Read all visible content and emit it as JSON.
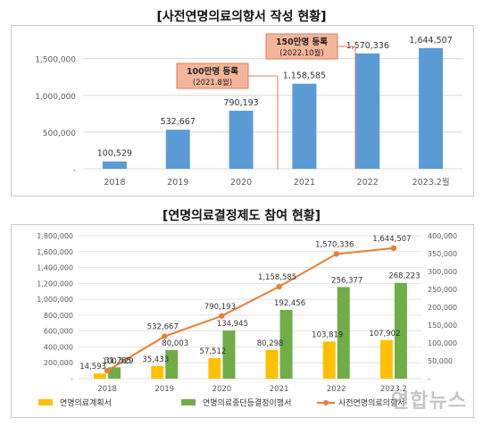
{
  "chart_data": [
    {
      "type": "bar",
      "title": "[사전연명의료의향서 작성 현황]",
      "categories": [
        "2018",
        "2019",
        "2020",
        "2021",
        "2022",
        "2023.2월"
      ],
      "values": [
        100529,
        532667,
        790193,
        1158585,
        1570336,
        1644507
      ],
      "value_labels": [
        "100,529",
        "532,667",
        "790,193",
        "1,158,585",
        "1,570,336",
        "1,644,507"
      ],
      "y_ticks": [
        "-",
        "500,000",
        "1,000,000",
        "1,500,000"
      ],
      "ylim": [
        0,
        1800000
      ],
      "grid": true,
      "bar_color": "#5b9bd5",
      "annotations": [
        {
          "line1": "100만명 등록",
          "line2": "(2021.8월)",
          "category_index": 3
        },
        {
          "line1": "150만명 등록",
          "line2": "(2022.10월)",
          "category_index": 4
        }
      ]
    },
    {
      "type": "bar",
      "title": "[연명의료결정제도 참여 현황]",
      "categories": [
        "2018",
        "2019",
        "2020",
        "2021",
        "2022",
        "2023.2"
      ],
      "y_left_ticks": [
        "-",
        "200,000",
        "400,000",
        "600,000",
        "800,000",
        "1,000,000",
        "1,200,000",
        "1,400,000",
        "1,600,000",
        "1,800,000"
      ],
      "y_right_ticks": [
        "-",
        "50,000",
        "100,000",
        "150,000",
        "200,000",
        "250,000",
        "300,000",
        "350,000",
        "400,000"
      ],
      "ylim_left": [
        0,
        1800000
      ],
      "ylim_right": [
        0,
        400000
      ],
      "series": [
        {
          "name": "연명의료계획서",
          "axis": "right",
          "color": "#ffc000",
          "values": [
            14593,
            35433,
            57512,
            80298,
            103819,
            107902
          ],
          "labels": [
            "14,593",
            "35,433",
            "57,512",
            "80,298",
            "103,819",
            "107,902"
          ]
        },
        {
          "name": "연명의료중단등결정이행서",
          "axis": "right",
          "color": "#70ad47",
          "values": [
            31765,
            80003,
            134945,
            192456,
            256377,
            268223
          ],
          "labels": [
            "31,765",
            "80,003",
            "134,945",
            "192,456",
            "256,377",
            "268,223"
          ]
        },
        {
          "name": "사전연명의료의향서",
          "axis": "left",
          "type": "line",
          "color": "#ed7d31",
          "values": [
            100529,
            532667,
            790193,
            1158585,
            1570336,
            1644507
          ],
          "labels": [
            "100,529",
            "532,667",
            "790,193",
            "1,158,585",
            "1,570,336",
            "1,644,507"
          ]
        }
      ]
    }
  ],
  "watermark": "연합뉴스"
}
